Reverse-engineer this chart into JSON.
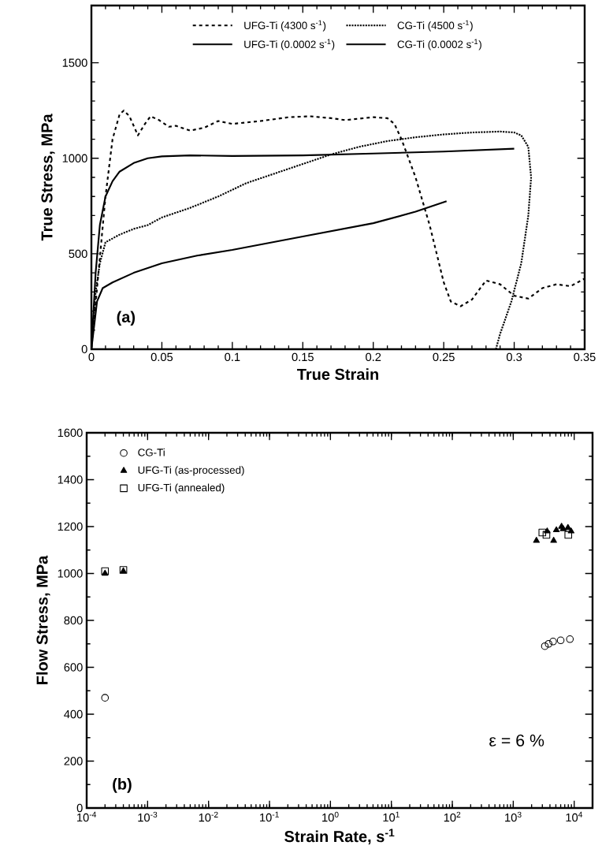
{
  "chart_data": [
    {
      "type": "line",
      "xlabel": "True Strain",
      "ylabel": "True Stress, MPa",
      "xlim": [
        0,
        0.35
      ],
      "ylim": [
        0,
        1800
      ],
      "xticks": [
        0,
        0.05,
        0.1,
        0.15,
        0.2,
        0.25,
        0.3,
        0.35
      ],
      "yticks": [
        0,
        500,
        1000,
        1500
      ],
      "legend": "top",
      "grid": false,
      "annotations": [
        "(a)"
      ],
      "series": [
        {
          "name": "UFG-Ti (4300 s$^{-1}$)",
          "color": "#000000",
          "line_style": "dashed",
          "marker": "none",
          "x": [
            0,
            0.005,
            0.01,
            0.015,
            0.02,
            0.023,
            0.027,
            0.033,
            0.038,
            0.042,
            0.048,
            0.055,
            0.06,
            0.07,
            0.08,
            0.09,
            0.1,
            0.12,
            0.14,
            0.155,
            0.17,
            0.18,
            0.2,
            0.21,
            0.215,
            0.22,
            0.23,
            0.24,
            0.25,
            0.255,
            0.262,
            0.27,
            0.28,
            0.29,
            0.3,
            0.31,
            0.32,
            0.33,
            0.34,
            0.35
          ],
          "values": [
            0,
            400,
            800,
            1100,
            1230,
            1250,
            1220,
            1120,
            1180,
            1220,
            1200,
            1165,
            1170,
            1145,
            1160,
            1195,
            1180,
            1195,
            1215,
            1220,
            1210,
            1200,
            1215,
            1210,
            1180,
            1100,
            900,
            650,
            350,
            250,
            225,
            260,
            360,
            340,
            280,
            265,
            320,
            340,
            330,
            370
          ]
        },
        {
          "name": "CG-Ti (4500 s$^{-1}$)",
          "color": "#000000",
          "line_style": "dotted",
          "marker": "none",
          "x": [
            0,
            0.003,
            0.006,
            0.01,
            0.02,
            0.03,
            0.04,
            0.05,
            0.07,
            0.09,
            0.11,
            0.13,
            0.15,
            0.17,
            0.19,
            0.21,
            0.23,
            0.25,
            0.27,
            0.29,
            0.3,
            0.305,
            0.31,
            0.312,
            0.31,
            0.305,
            0.298,
            0.29,
            0.287
          ],
          "values": [
            0,
            300,
            450,
            560,
            600,
            630,
            650,
            690,
            740,
            800,
            870,
            920,
            970,
            1020,
            1060,
            1090,
            1110,
            1125,
            1135,
            1140,
            1135,
            1120,
            1060,
            900,
            700,
            450,
            250,
            80,
            0
          ]
        },
        {
          "name": "UFG-Ti (0.0002 s$^{-1}$)",
          "color": "#000000",
          "line_style": "solid",
          "marker": "none",
          "x": [
            0,
            0.003,
            0.006,
            0.01,
            0.015,
            0.02,
            0.03,
            0.04,
            0.05,
            0.07,
            0.1,
            0.15,
            0.2,
            0.25,
            0.3
          ],
          "values": [
            0,
            400,
            650,
            800,
            880,
            930,
            975,
            1000,
            1010,
            1015,
            1012,
            1015,
            1025,
            1035,
            1050
          ]
        },
        {
          "name": "CG-Ti (0.0002 s$^{-1}$)",
          "color": "#000000",
          "line_style": "solid",
          "marker": "none",
          "x": [
            0,
            0.004,
            0.008,
            0.015,
            0.03,
            0.05,
            0.075,
            0.1,
            0.15,
            0.2,
            0.23,
            0.252
          ],
          "values": [
            0,
            250,
            320,
            350,
            400,
            450,
            490,
            520,
            590,
            660,
            720,
            775
          ]
        }
      ]
    },
    {
      "type": "scatter",
      "xlabel": "Strain Rate, s$^{-1}$",
      "ylabel": "Flow Stress, MPa",
      "log": "x",
      "xlim": [
        0.0001,
        20000
      ],
      "ylim": [
        0,
        1600
      ],
      "xticks": [
        {
          "value": 0.0001,
          "label": "10$^{-4}$"
        },
        {
          "value": 0.001,
          "label": "10$^{-3}$"
        },
        {
          "value": 0.01,
          "label": "10$^{-2}$"
        },
        {
          "value": 0.1,
          "label": "10$^{-1}$"
        },
        {
          "value": 1,
          "label": "10$^{0}$"
        },
        {
          "value": 10,
          "label": "10$^{1}$"
        },
        {
          "value": 100,
          "label": "10$^{2}$"
        },
        {
          "value": 1000,
          "label": "10$^{3}$"
        },
        {
          "value": 10000,
          "label": "10$^{4}$"
        }
      ],
      "yticks": [
        0,
        200,
        400,
        600,
        800,
        1000,
        1200,
        1400,
        1600
      ],
      "legend": "top left",
      "grid": false,
      "annotations": [
        "(b)",
        "ε = 6 %"
      ],
      "series": [
        {
          "name": "CG-Ti",
          "color": "#000000",
          "marker": "circle",
          "x": [
            0.0002,
            3300,
            3800,
            4500,
            6000,
            8500
          ],
          "values": [
            470,
            690,
            700,
            710,
            715,
            720
          ]
        },
        {
          "name": "UFG-Ti (as-processed)",
          "color": "#000000",
          "marker": "triangle",
          "x": [
            0.0002,
            0.0004,
            2400,
            3600,
            4600,
            5100,
            6200,
            6600,
            7900,
            8900
          ],
          "values": [
            1000,
            1010,
            1140,
            1180,
            1140,
            1185,
            1200,
            1190,
            1195,
            1180
          ]
        },
        {
          "name": "UFG-Ti (annealed)",
          "color": "#000000",
          "marker": "square",
          "x": [
            0.0002,
            0.0004,
            3000,
            3500,
            8000
          ],
          "values": [
            1010,
            1015,
            1175,
            1165,
            1165
          ]
        }
      ]
    }
  ]
}
